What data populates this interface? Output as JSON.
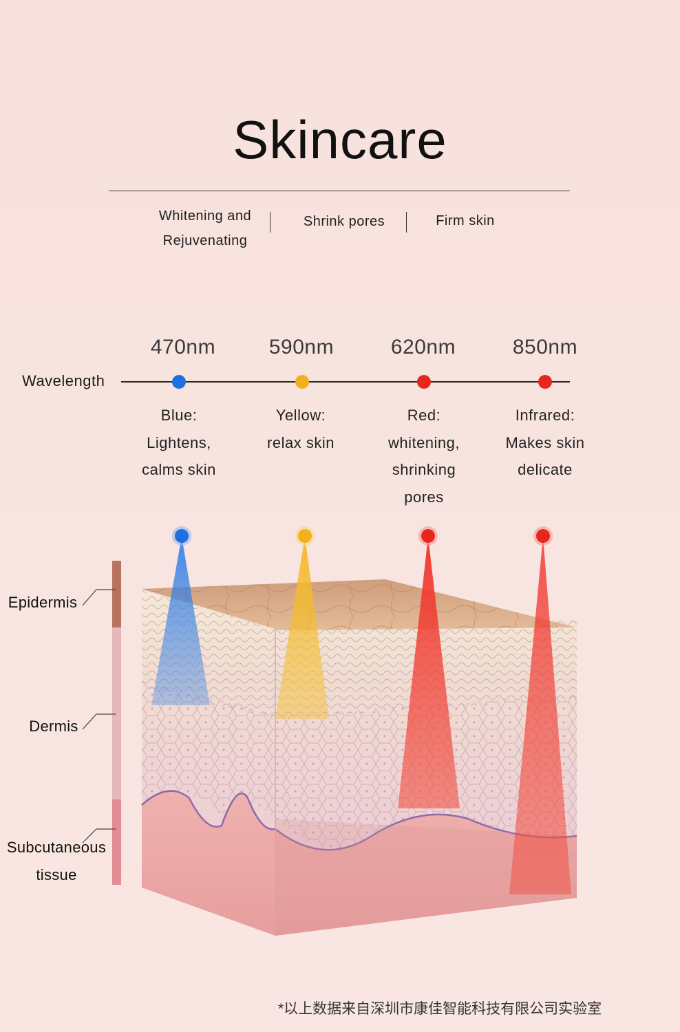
{
  "title": "Skincare",
  "benefits": [
    "Whitening and\nRejuvenating",
    "Shrink pores",
    "Firm skin"
  ],
  "wavelength_label": "Wavelength",
  "wavelengths": [
    {
      "nm": "470nm",
      "color": "#1f6fe0",
      "desc": [
        "Blue:",
        "Lightens,",
        "calms skin"
      ]
    },
    {
      "nm": "590nm",
      "color": "#f2b01e",
      "desc": [
        "Yellow:",
        "relax skin"
      ]
    },
    {
      "nm": "620nm",
      "color": "#e8261c",
      "desc": [
        "Red:",
        "whitening,",
        "shrinking",
        "pores"
      ]
    },
    {
      "nm": "850nm",
      "color": "#e5281e",
      "desc": [
        "Infrared:",
        "Makes skin",
        "delicate"
      ]
    }
  ],
  "layers": {
    "epidermis": "Epidermis",
    "dermis": "Dermis",
    "subcutaneous": [
      "Subcutaneous",
      "tissue"
    ]
  },
  "colors": {
    "epidermis_bar": "#b8735f",
    "dermis_bar": "#e6b8bb",
    "subcutaneous_bar": "#e28c93"
  },
  "footnote": "*以上数据来自深圳市康佳智能科技有限公司实验室"
}
